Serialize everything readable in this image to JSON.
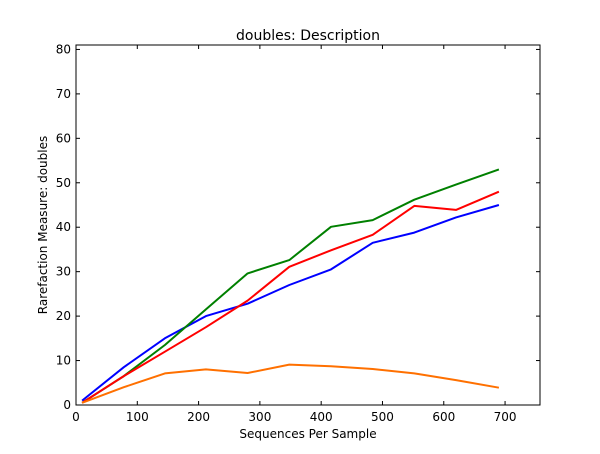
{
  "chart_data": {
    "type": "line",
    "title": "doubles: Description",
    "xlabel": "Sequences Per Sample",
    "ylabel": "Rarefaction Measure: doubles",
    "xlim": [
      0,
      757
    ],
    "ylim": [
      0,
      81
    ],
    "x_ticks": [
      0,
      100,
      200,
      300,
      400,
      500,
      600,
      700
    ],
    "y_ticks": [
      0,
      10,
      20,
      30,
      40,
      50,
      60,
      70,
      80
    ],
    "grid": false,
    "legend": "none",
    "x": [
      10,
      78,
      145,
      212,
      280,
      348,
      416,
      484,
      552,
      620,
      690
    ],
    "series": [
      {
        "color": "#0000ff",
        "values": [
          1.0,
          8.5,
          15.0,
          20.0,
          22.8,
          27.0,
          30.5,
          36.5,
          38.8,
          42.2,
          45.0
        ]
      },
      {
        "color": "#008000",
        "values": [
          0.5,
          6.5,
          13.5,
          21.5,
          29.6,
          32.6,
          40.1,
          41.6,
          46.2,
          49.6,
          53.0
        ]
      },
      {
        "color": "#ff0000",
        "values": [
          0.5,
          6.5,
          12.0,
          17.5,
          23.5,
          31.1,
          34.8,
          38.3,
          44.8,
          43.9,
          48.0
        ]
      },
      {
        "color": "#ff7000",
        "values": [
          0.5,
          4.0,
          7.1,
          8.0,
          7.2,
          9.1,
          8.7,
          8.1,
          7.1,
          5.6,
          3.9
        ]
      }
    ]
  }
}
